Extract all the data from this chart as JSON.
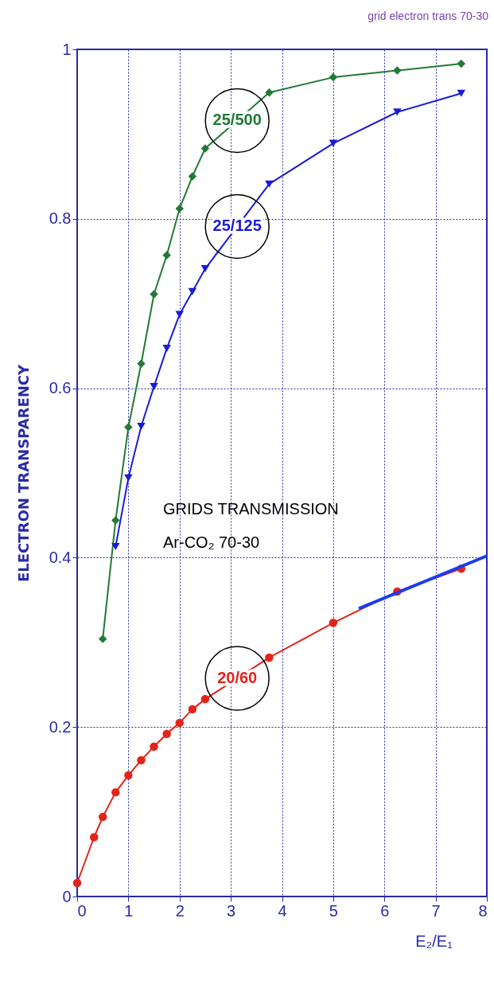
{
  "chart_data": {
    "type": "line",
    "title": "grid electron trans 70-30",
    "xlabel": "E₂/E₁",
    "ylabel": "ELECTRON TRANSPARENCY",
    "annotations": [
      "GRIDS TRANSMISSION",
      "Ar-CO₂ 70-30"
    ],
    "series": [
      {
        "name": "25/500",
        "color": "#217a35",
        "marker": "diamond",
        "x": [
          0.5,
          0.75,
          1.0,
          1.25,
          1.5,
          1.75,
          2.0,
          2.25,
          2.5,
          3.75,
          5.0,
          6.25,
          7.5
        ],
        "values": [
          0.304,
          0.444,
          0.554,
          0.629,
          0.711,
          0.757,
          0.812,
          0.85,
          0.883,
          0.949,
          0.967,
          0.975,
          0.983
        ]
      },
      {
        "name": "25/125",
        "color": "#1a1ad8",
        "marker": "triangle",
        "x": [
          0.75,
          1.0,
          1.25,
          1.5,
          1.75,
          2.0,
          2.25,
          2.5,
          3.75,
          5.0,
          6.25,
          7.5
        ],
        "values": [
          0.413,
          0.494,
          0.555,
          0.602,
          0.647,
          0.687,
          0.714,
          0.741,
          0.841,
          0.889,
          0.926,
          0.948
        ]
      },
      {
        "name": "20/60",
        "color": "#e3241a",
        "marker": "circle",
        "x": [
          0,
          0.33,
          0.5,
          0.75,
          1.0,
          1.25,
          1.5,
          1.75,
          2.0,
          2.25,
          2.5,
          3.75,
          5.0,
          6.25,
          7.5
        ],
        "values": [
          0.016,
          0.07,
          0.094,
          0.123,
          0.143,
          0.161,
          0.177,
          0.192,
          0.205,
          0.221,
          0.233,
          0.282,
          0.323,
          0.36,
          0.387
        ]
      },
      {
        "type": "line",
        "color": "#1a3cf0",
        "marker": "none",
        "x": [
          5.5,
          8.0
        ],
        "values": [
          0.34,
          0.402
        ]
      }
    ],
    "xlim": [
      0,
      8
    ],
    "xticks": [
      0,
      1,
      2,
      3,
      4,
      5,
      6,
      7,
      8
    ],
    "ylim": [
      0,
      1
    ],
    "yticks": [
      0,
      0.2,
      0.4,
      0.6,
      0.8,
      1
    ],
    "grid": true
  }
}
